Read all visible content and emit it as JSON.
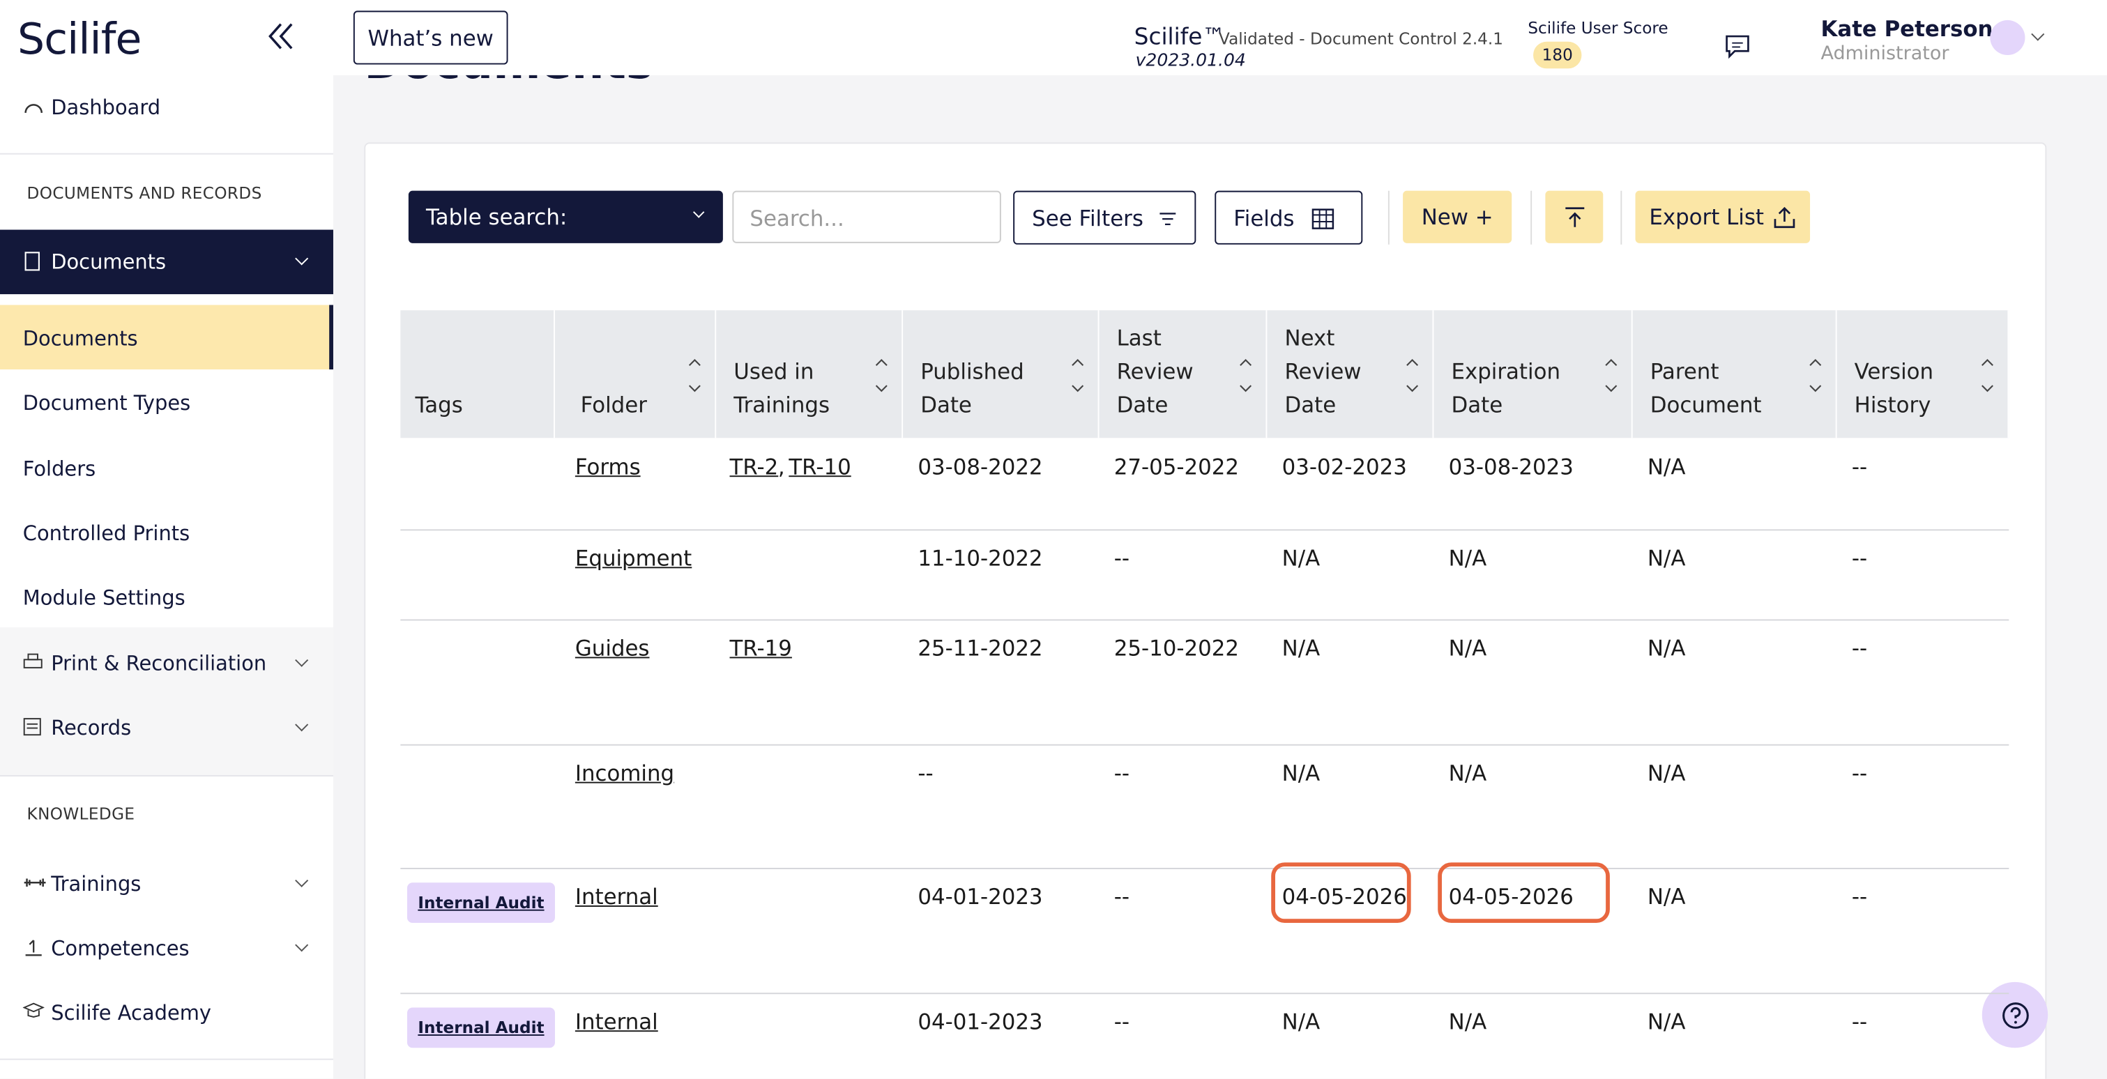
{
  "sidebar": {
    "brand": "Scilife",
    "dashboard": "Dashboard",
    "section_docs": "DOCUMENTS AND RECORDS",
    "documents_group": "Documents",
    "sub_items": [
      "Documents",
      "Document Types",
      "Folders",
      "Controlled Prints",
      "Module Settings"
    ],
    "print": "Print & Reconciliation",
    "records": "Records",
    "section_knowledge": "KNOWLEDGE",
    "trainings": "Trainings",
    "competences": "Competences",
    "academy": "Scilife Academy"
  },
  "header": {
    "whats_new": "What’s new",
    "product": "Scilife™",
    "validated": "Validated - Document Control 2.4.1",
    "version": "v2023.01.04",
    "score_label": "Scilife User Score",
    "score": "180",
    "user_name": "Kate Peterson",
    "user_role": "Administrator"
  },
  "page_title": "Documents",
  "toolbar": {
    "table_search": "Table search:",
    "search_placeholder": "Search...",
    "see_filters": "See Filters",
    "fields": "Fields",
    "new": "New +",
    "export": "Export List"
  },
  "table": {
    "columns": [
      "Tags",
      "Folder",
      "Used in\nTrainings",
      "Published\nDate",
      "Last\nReview\nDate",
      "Next\nReview\nDate",
      "Expiration\nDate",
      "Parent\nDocument",
      "Version\nHistory"
    ],
    "rows": [
      {
        "tags": [],
        "folder": "Forms",
        "trainings": [
          "TR-2",
          "TR-10"
        ],
        "published": "03-08-2022",
        "last_review": "27-05-2022",
        "next_review": "03-02-2023",
        "expiration": "03-08-2023",
        "parent": "N/A",
        "version": "--"
      },
      {
        "tags": [],
        "folder": "Equipment",
        "trainings": [],
        "published": "11-10-2022",
        "last_review": "--",
        "next_review": "N/A",
        "expiration": "N/A",
        "parent": "N/A",
        "version": "--"
      },
      {
        "tags": [],
        "folder": "Guides",
        "trainings": [
          "TR-19"
        ],
        "published": "25-11-2022",
        "last_review": "25-10-2022",
        "next_review": "N/A",
        "expiration": "N/A",
        "parent": "N/A",
        "version": "--"
      },
      {
        "tags": [],
        "folder": "Incoming",
        "trainings": [],
        "published": "--",
        "last_review": "--",
        "next_review": "N/A",
        "expiration": "N/A",
        "parent": "N/A",
        "version": "--"
      },
      {
        "tags": [
          "Internal Audit"
        ],
        "folder": "Internal",
        "trainings": [],
        "published": "04-01-2023",
        "last_review": "--",
        "next_review": "04-05-2026",
        "expiration": "04-05-2026",
        "parent": "N/A",
        "version": "--"
      },
      {
        "tags": [
          "Internal Audit"
        ],
        "folder": "Internal",
        "trainings": [],
        "published": "04-01-2023",
        "last_review": "--",
        "next_review": "N/A",
        "expiration": "N/A",
        "parent": "N/A",
        "version": "--"
      }
    ]
  }
}
